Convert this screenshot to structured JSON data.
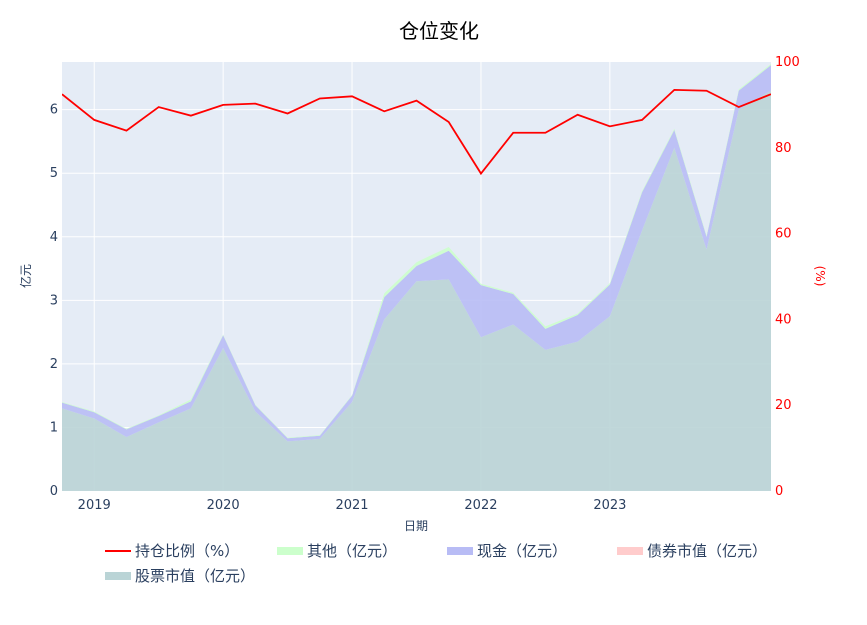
{
  "chart_data": {
    "type": "area",
    "title": "仓位变化",
    "xlabel": "日期",
    "ylabel": "亿元",
    "y2label": "(%)",
    "x": [
      "2018Q3",
      "2018Q4",
      "2019Q1",
      "2019Q2",
      "2019Q3",
      "2019Q4",
      "2020Q1",
      "2020Q2",
      "2020Q3",
      "2020Q4",
      "2021Q1",
      "2021Q2",
      "2021Q3",
      "2021Q4",
      "2022Q1",
      "2022Q2",
      "2022Q3",
      "2022Q4",
      "2023Q1",
      "2023Q2",
      "2023Q3",
      "2023Q4",
      "2024Q1"
    ],
    "x_ticks": [
      "2019",
      "2020",
      "2021",
      "2022",
      "2023"
    ],
    "y_ticks": [
      "0",
      "1",
      "2",
      "3",
      "4",
      "5",
      "6"
    ],
    "y2_ticks": [
      "0",
      "20",
      "40",
      "60",
      "80",
      "100"
    ],
    "ylim": [
      0,
      6.75
    ],
    "y2lim": [
      0,
      100
    ],
    "grid": true,
    "legend_position": "bottom",
    "series": [
      {
        "name": "持仓比例（%）",
        "axis": "right",
        "kind": "line",
        "color": "#ff0000",
        "values": [
          92.5,
          86.5,
          84.0,
          89.5,
          87.5,
          90.0,
          90.3,
          88.0,
          91.5,
          92.0,
          88.5,
          91.0,
          86.0,
          74.0,
          83.5,
          83.5,
          87.7,
          85.0,
          86.5,
          93.5,
          93.3,
          89.5,
          92.5
        ]
      },
      {
        "name": "其他（亿元）",
        "axis": "left",
        "kind": "area",
        "color": "#ccffcc",
        "values": [
          0.01,
          0.01,
          0.01,
          0.01,
          0.03,
          0.01,
          0.01,
          0.01,
          0.01,
          0.01,
          0.06,
          0.06,
          0.06,
          0.02,
          0.02,
          0.04,
          0.02,
          0.02,
          0.02,
          0.02,
          0.02,
          0.02,
          0.02
        ]
      },
      {
        "name": "现金（亿元）",
        "axis": "left",
        "kind": "area",
        "color": "#b8bcf5",
        "values": [
          0.09,
          0.1,
          0.12,
          0.1,
          0.11,
          0.2,
          0.1,
          0.05,
          0.05,
          0.1,
          0.35,
          0.24,
          0.45,
          0.82,
          0.48,
          0.33,
          0.42,
          0.5,
          0.6,
          0.28,
          0.2,
          0.3,
          0.4
        ]
      },
      {
        "name": "债券市值（亿元）",
        "axis": "left",
        "kind": "area",
        "color": "#ffcccc",
        "values": [
          0,
          0,
          0,
          0,
          0,
          0,
          0,
          0,
          0,
          0,
          0,
          0,
          0,
          0,
          0,
          0,
          0,
          0,
          0,
          0,
          0,
          0,
          0
        ]
      },
      {
        "name": "股票市值（亿元）",
        "axis": "left",
        "kind": "area",
        "color": "#bad4d6",
        "values": [
          1.3,
          1.14,
          0.85,
          1.08,
          1.3,
          2.25,
          1.25,
          0.78,
          0.82,
          1.4,
          2.7,
          3.3,
          3.33,
          2.42,
          2.62,
          2.22,
          2.35,
          2.75,
          4.1,
          5.4,
          3.8,
          6.0,
          6.3
        ]
      }
    ]
  }
}
